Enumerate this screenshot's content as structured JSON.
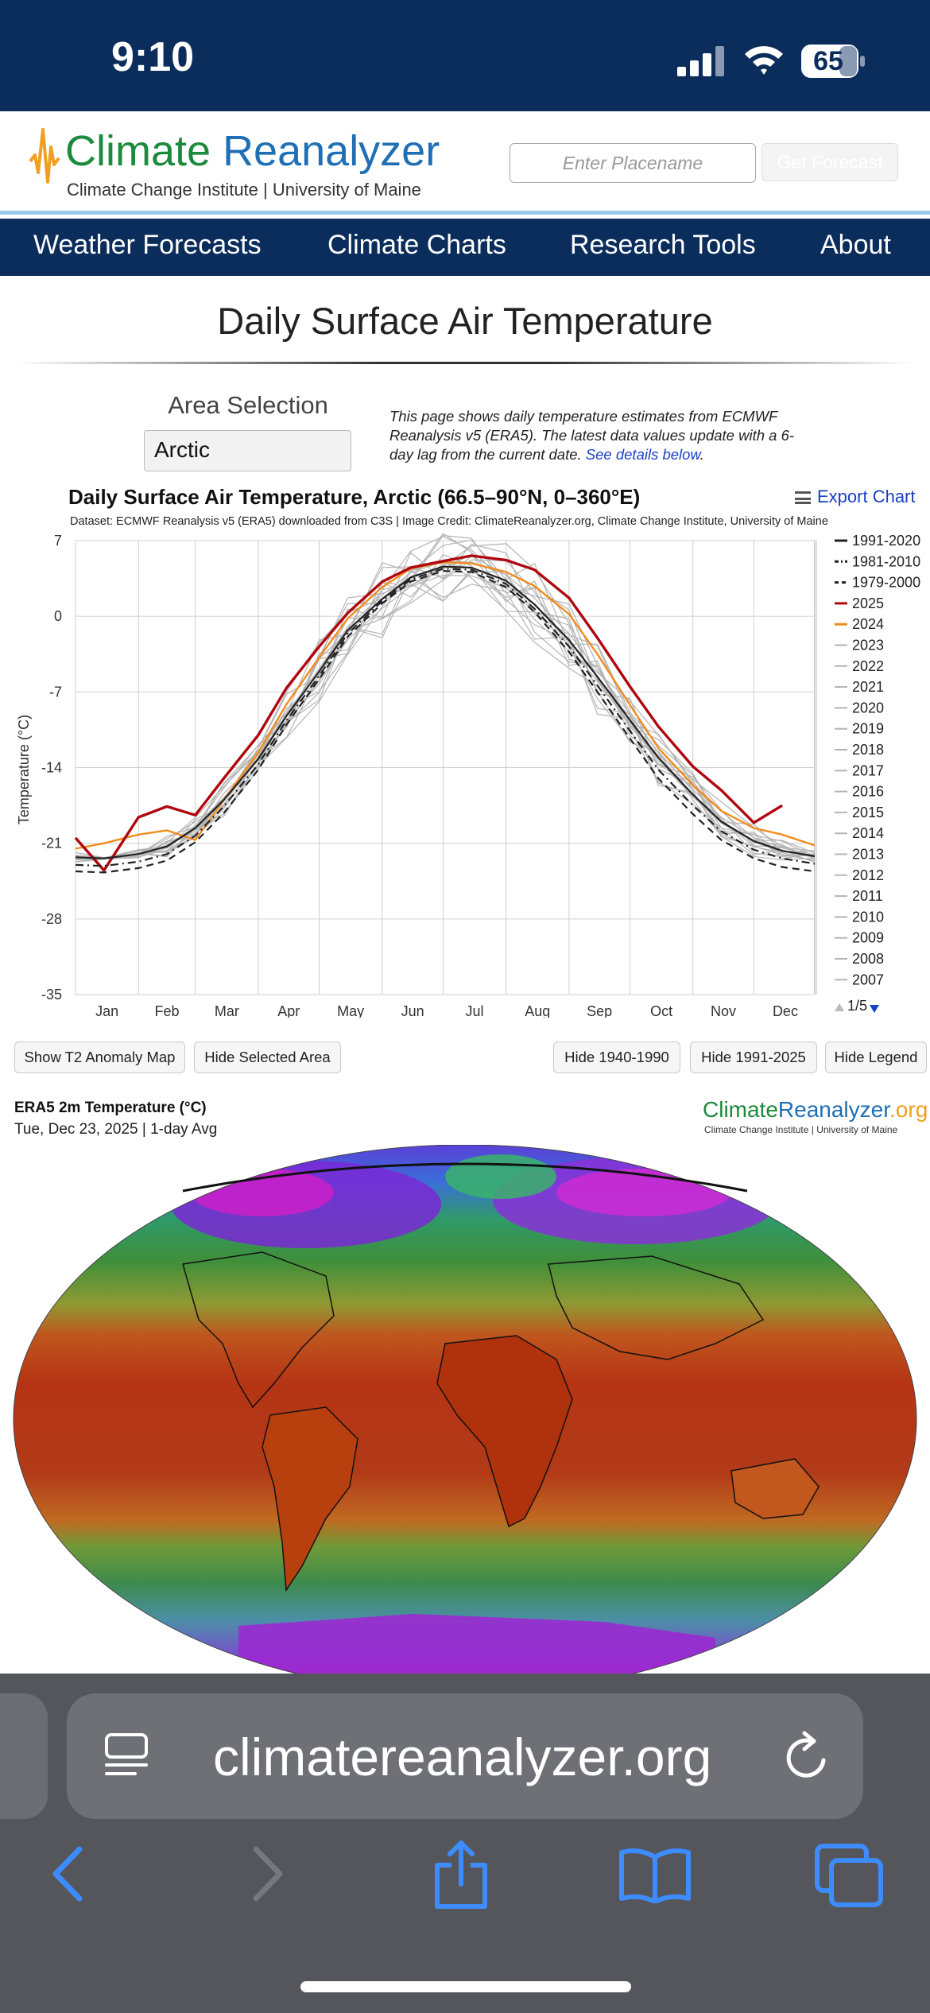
{
  "status_bar": {
    "time": "9:10",
    "battery": "65"
  },
  "header": {
    "logo_word1": "Climate",
    "logo_word2": "Reanalyzer",
    "subtitle": "Climate Change Institute | University of Maine",
    "search_placeholder": "Enter Placename",
    "forecast_button": "Get Forecast"
  },
  "nav": {
    "items": [
      "Weather Forecasts",
      "Climate Charts",
      "Research Tools",
      "About"
    ]
  },
  "page": {
    "title": "Daily Surface Air Temperature",
    "area_label": "Area Selection",
    "area_value": "Arctic",
    "info_text": "This page shows daily temperature estimates from ECMWF Reanalysis v5 (ERA5). The latest data values update with a 6-day lag from the current date.",
    "info_link": "See details below"
  },
  "chart": {
    "export_label": "Export Chart",
    "credit": "Dataset: ECMWF Reanalysis v5 (ERA5) downloaded from C3S | Image Credit: ClimateReanalyzer.org, Climate Change Institute, University of Maine",
    "legend_page": "1/5"
  },
  "chart_data": {
    "type": "line",
    "title": "Daily Surface Air Temperature, Arctic (66.5–90°N, 0–360°E)",
    "xlabel": "",
    "ylabel": "Temperature (°C)",
    "ylim": [
      -35,
      7
    ],
    "yticks": [
      7,
      0,
      -7,
      -14,
      -21,
      -28,
      -35
    ],
    "months": [
      "Jan",
      "Feb",
      "Mar",
      "Apr",
      "May",
      "Jun",
      "Jul",
      "Aug",
      "Sep",
      "Oct",
      "Nov",
      "Dec"
    ],
    "x": [
      1,
      15,
      32,
      46,
      60,
      74,
      91,
      105,
      121,
      135,
      152,
      166,
      182,
      196,
      213,
      227,
      244,
      258,
      274,
      288,
      305,
      319,
      335,
      349,
      365
    ],
    "series": [
      {
        "name": "1991-2020",
        "style": "solid",
        "color": "#222222",
        "values": [
          -22.3,
          -22.4,
          -22.0,
          -21.3,
          -19.6,
          -17.0,
          -13.2,
          -9.2,
          -5.1,
          -1.3,
          1.6,
          3.6,
          4.6,
          4.5,
          3.3,
          1.1,
          -2.2,
          -5.6,
          -9.6,
          -13.1,
          -16.5,
          -19.0,
          -20.8,
          -21.7,
          -22.2
        ]
      },
      {
        "name": "1981-2010",
        "style": "dashdot",
        "color": "#222222",
        "values": [
          -23.0,
          -23.1,
          -22.7,
          -22.0,
          -20.3,
          -17.6,
          -13.7,
          -9.6,
          -5.5,
          -1.6,
          1.4,
          3.4,
          4.4,
          4.3,
          3.0,
          0.7,
          -2.8,
          -6.4,
          -10.6,
          -14.2,
          -17.5,
          -19.9,
          -21.6,
          -22.4,
          -22.9
        ]
      },
      {
        "name": "1979-2000",
        "style": "dashed",
        "color": "#222222",
        "values": [
          -23.6,
          -23.7,
          -23.3,
          -22.6,
          -20.9,
          -18.2,
          -14.2,
          -10.0,
          -5.8,
          -1.9,
          1.2,
          3.2,
          4.2,
          4.1,
          2.7,
          0.4,
          -3.3,
          -7.0,
          -11.3,
          -15.0,
          -18.3,
          -20.7,
          -22.4,
          -23.2,
          -23.6
        ]
      },
      {
        "name": "2025",
        "style": "solid",
        "color": "#b0070f",
        "values": [
          -20.5,
          -23.5,
          -18.6,
          -17.6,
          -18.4,
          -15.0,
          -11.0,
          -6.6,
          -2.8,
          0.3,
          3.2,
          4.5,
          5.1,
          5.6,
          5.2,
          4.3,
          1.7,
          -2.0,
          -6.5,
          -10.2,
          -13.9,
          -16.1,
          -19.1,
          -17.5,
          null
        ]
      },
      {
        "name": "2024",
        "style": "solid",
        "color": "#f28c1e",
        "values": [
          -21.5,
          -21.0,
          -20.2,
          -19.8,
          -20.7,
          -17.0,
          -12.6,
          -8.1,
          -3.8,
          -0.2,
          2.7,
          4.4,
          5.0,
          4.9,
          4.1,
          2.8,
          0.2,
          -3.5,
          -8.2,
          -12.2,
          -15.6,
          -18.0,
          -19.6,
          -20.2,
          -21.2
        ]
      }
    ],
    "other_years": [
      "2023",
      "2022",
      "2021",
      "2020",
      "2019",
      "2018",
      "2017",
      "2016",
      "2015",
      "2014",
      "2013",
      "2012",
      "2011",
      "2010",
      "2009",
      "2008",
      "2007"
    ]
  },
  "buttons": {
    "anomaly": "Show T2 Anomaly Map",
    "hide_area": "Hide Selected Area",
    "hide_1940": "Hide 1940-1990",
    "hide_1991": "Hide 1991-2025",
    "hide_legend": "Hide Legend"
  },
  "map": {
    "title": "ERA5 2m Temperature (°C)",
    "date": "Tue, Dec 23, 2025 | 1-day Avg",
    "logo_word1": "Climate",
    "logo_word2": "Reanalyzer",
    "logo_tld": ".org",
    "logo_sub": "Climate Change Institute | University of Maine"
  },
  "browser": {
    "url": "climatereanalyzer.org"
  }
}
